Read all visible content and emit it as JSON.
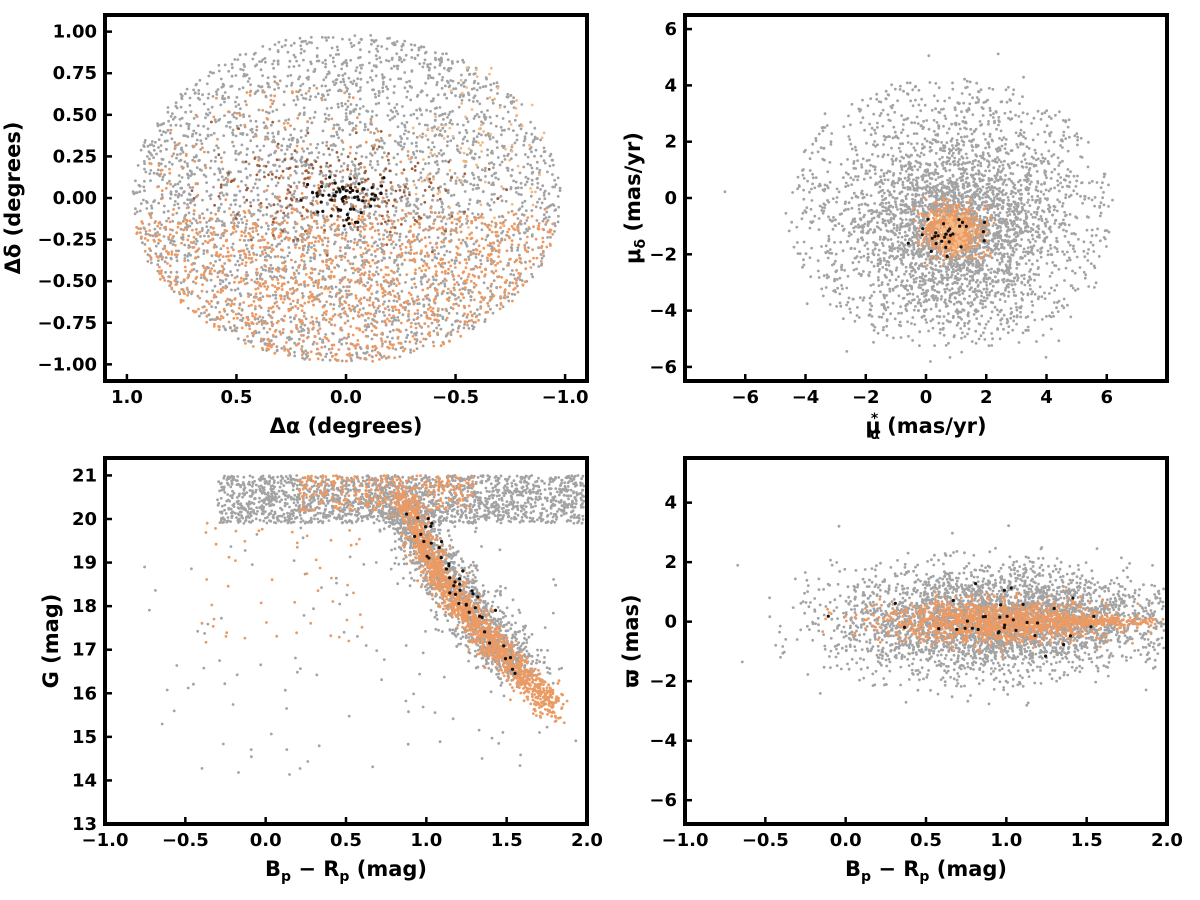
{
  "colors": {
    "field": "#a3a3a3",
    "member_orange": "#ec9a64",
    "member_light": "#f4bb85",
    "member_brown": "#9b5d3c",
    "member_black": "#111111"
  },
  "chart_data": [
    {
      "id": "sky",
      "type": "scatter",
      "xlabel": "Δα (degrees)",
      "ylabel": "Δδ (degrees)",
      "xlim": [
        1.1,
        -1.1
      ],
      "ylim": [
        -1.1,
        1.1
      ],
      "x_inverted": true,
      "xticks": [
        1.0,
        0.5,
        0.0,
        -0.5,
        -1.0
      ],
      "xtick_labels": [
        "1.0",
        "0.5",
        "0.0",
        "−0.5",
        "−1.0"
      ],
      "yticks": [
        1.0,
        0.75,
        0.5,
        0.25,
        0.0,
        -0.25,
        -0.5,
        -0.75,
        -1.0
      ],
      "ytick_labels": [
        "1.00",
        "0.75",
        "0.50",
        "0.25",
        "0.00",
        "−0.25",
        "−0.50",
        "−0.75",
        "−1.00"
      ],
      "series": [
        {
          "color": "field",
          "dist": "disk",
          "cx": 0,
          "cy": 0,
          "rx": 0.98,
          "ry": 0.99,
          "n": 3200
        },
        {
          "color": "member_orange",
          "dist": "disk_band",
          "cx": 0,
          "cy": -0.6,
          "rx": 0.95,
          "ry": 0.4,
          "n": 1400
        },
        {
          "color": "member_orange",
          "dist": "disk",
          "cx": 0.3,
          "cy": 0.2,
          "rx": 0.6,
          "ry": 0.5,
          "n": 160
        },
        {
          "color": "member_light",
          "dist": "disk",
          "cx": -0.6,
          "cy": 0.3,
          "rx": 0.35,
          "ry": 0.5,
          "n": 90
        },
        {
          "color": "member_brown",
          "dist": "gauss",
          "cx": 0.05,
          "cy": 0.05,
          "sx": 0.28,
          "sy": 0.14,
          "n": 220
        },
        {
          "color": "member_black",
          "dist": "gauss",
          "cx": 0.0,
          "cy": 0.0,
          "sx": 0.1,
          "sy": 0.08,
          "n": 60
        }
      ]
    },
    {
      "id": "pm",
      "type": "scatter",
      "xlabel": "μ*α (mas/yr)",
      "ylabel": "μδ (mas/yr)",
      "xlim": [
        -8.0,
        8.0
      ],
      "ylim": [
        -6.5,
        6.5
      ],
      "xticks": [
        -6,
        -4,
        -2,
        0,
        2,
        4,
        6
      ],
      "xtick_labels": [
        "−6",
        "−4",
        "−2",
        "0",
        "2",
        "4",
        "6"
      ],
      "yticks": [
        6,
        4,
        2,
        0,
        -2,
        -4,
        -6
      ],
      "ytick_labels": [
        "6",
        "4",
        "2",
        "0",
        "−2",
        "−4",
        "−6"
      ],
      "series": [
        {
          "color": "field",
          "dist": "disk",
          "cx": 0.8,
          "cy": -0.5,
          "rx": 5.5,
          "ry": 4.8,
          "n": 1100
        },
        {
          "color": "field",
          "dist": "gauss",
          "cx": 1.0,
          "cy": -1.0,
          "sx": 1.6,
          "sy": 1.6,
          "n": 2600
        },
        {
          "color": "member_orange",
          "dist": "gauss",
          "cx": 0.9,
          "cy": -1.2,
          "sx": 0.45,
          "sy": 0.42,
          "n": 700
        },
        {
          "color": "member_light",
          "dist": "gauss",
          "cx": 0.9,
          "cy": -1.2,
          "sx": 0.35,
          "sy": 0.3,
          "n": 120
        },
        {
          "color": "member_black",
          "dist": "gauss",
          "cx": 0.9,
          "cy": -1.3,
          "sx": 0.6,
          "sy": 0.35,
          "n": 30
        }
      ]
    },
    {
      "id": "cmd",
      "type": "scatter",
      "xlabel": "Bp − Rp (mag)",
      "ylabel": "G (mag)",
      "xlim": [
        -1.0,
        2.0
      ],
      "ylim": [
        13.0,
        21.4
      ],
      "y_inverted": false,
      "xticks": [
        -1.0,
        -0.5,
        0.0,
        0.5,
        1.0,
        1.5,
        2.0
      ],
      "xtick_labels": [
        "−1.0",
        "−0.5",
        "0.0",
        "0.5",
        "1.0",
        "1.5",
        "2.0"
      ],
      "yticks": [
        21,
        20,
        19,
        18,
        17,
        16,
        15,
        14,
        13
      ],
      "ytick_labels": [
        "21",
        "20",
        "19",
        "18",
        "17",
        "16",
        "15",
        "14",
        "13"
      ],
      "series": [
        {
          "color": "field",
          "dist": "band",
          "x0": -0.3,
          "x1": 2.0,
          "y0": 19.9,
          "y1": 21.0,
          "n": 1800
        },
        {
          "color": "field",
          "dist": "seq",
          "pts": [
            [
              0.8,
              20.5
            ],
            [
              1.0,
              19.3
            ],
            [
              1.2,
              18.3
            ],
            [
              1.4,
              17.3
            ],
            [
              1.6,
              16.5
            ]
          ],
          "sx": 0.18,
          "sy": 0.5,
          "n": 1500
        },
        {
          "color": "field",
          "dist": "uniform",
          "x0": -0.8,
          "x1": 2.0,
          "y0": 14.0,
          "y1": 20.5,
          "n": 120
        },
        {
          "color": "member_orange",
          "dist": "seq",
          "pts": [
            [
              0.85,
              20.5
            ],
            [
              1.0,
              19.2
            ],
            [
              1.15,
              18.3
            ],
            [
              1.35,
              17.4
            ],
            [
              1.55,
              16.6
            ],
            [
              1.8,
              15.6
            ]
          ],
          "sx": 0.09,
          "sy": 0.35,
          "n": 1500
        },
        {
          "color": "member_orange",
          "dist": "band",
          "x0": 0.2,
          "x1": 1.3,
          "y0": 20.2,
          "y1": 21.0,
          "n": 300
        },
        {
          "color": "member_orange",
          "dist": "uniform",
          "x0": -0.4,
          "x1": 0.6,
          "y0": 17.0,
          "y1": 20.0,
          "n": 50
        },
        {
          "color": "member_black",
          "dist": "seq",
          "pts": [
            [
              0.9,
              20.2
            ],
            [
              1.1,
              19.0
            ],
            [
              1.3,
              17.8
            ],
            [
              1.6,
              16.4
            ]
          ],
          "sx": 0.08,
          "sy": 0.4,
          "n": 45
        }
      ]
    },
    {
      "id": "plx",
      "type": "scatter",
      "xlabel": "Bp − Rp (mag)",
      "ylabel": "ϖ (mas)",
      "xlim": [
        -1.0,
        2.0
      ],
      "ylim": [
        -6.8,
        5.5
      ],
      "xticks": [
        -1.0,
        -0.5,
        0.0,
        0.5,
        1.0,
        1.5,
        2.0
      ],
      "xtick_labels": [
        "−1.0",
        "−0.5",
        "0.0",
        "0.5",
        "1.0",
        "1.5",
        "2.0"
      ],
      "yticks": [
        4,
        2,
        0,
        -2,
        -4,
        -6
      ],
      "ytick_labels": [
        "4",
        "2",
        "0",
        "−2",
        "−4",
        "−6"
      ],
      "series": [
        {
          "color": "field",
          "dist": "gauss",
          "cx": 0.85,
          "cy": 0.0,
          "sx": 0.45,
          "sy": 0.9,
          "n": 3000
        },
        {
          "color": "field",
          "dist": "gauss",
          "cx": 1.5,
          "cy": 0.2,
          "sx": 0.35,
          "sy": 0.6,
          "n": 600
        },
        {
          "color": "member_orange",
          "dist": "gauss",
          "cx": 0.95,
          "cy": 0.0,
          "sx": 0.35,
          "sy": 0.35,
          "n": 1300
        },
        {
          "color": "member_orange",
          "dist": "gauss",
          "cx": 1.55,
          "cy": 0.0,
          "sx": 0.18,
          "sy": 0.07,
          "n": 200
        },
        {
          "color": "member_black",
          "dist": "gauss",
          "cx": 0.95,
          "cy": 0.0,
          "sx": 0.35,
          "sy": 0.5,
          "n": 35
        }
      ]
    }
  ]
}
